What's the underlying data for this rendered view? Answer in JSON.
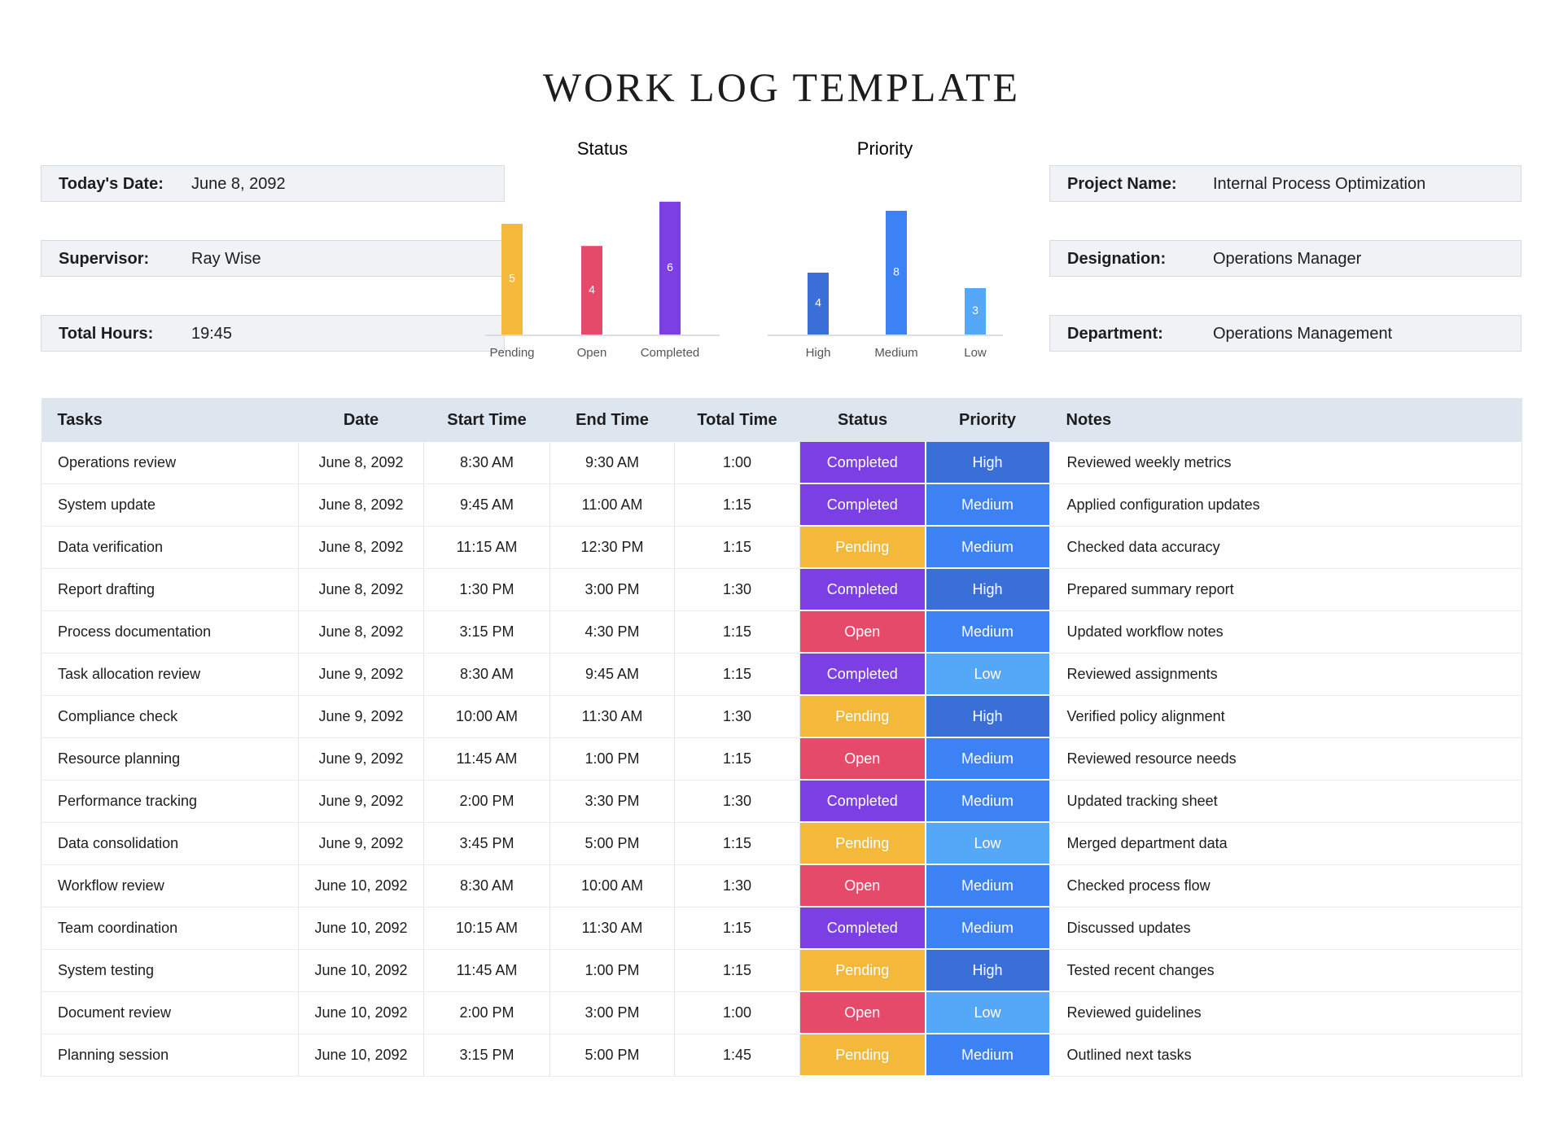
{
  "header": {
    "title": "WORK LOG TEMPLATE"
  },
  "fields_left": [
    {
      "label": "Today's Date:",
      "value": "June 8, 2092"
    },
    {
      "label": "Supervisor:",
      "value": "Ray Wise"
    },
    {
      "label": "Total Hours:",
      "value": "19:45"
    }
  ],
  "fields_right": [
    {
      "label": "Project Name:",
      "value": "Internal Process Optimization"
    },
    {
      "label": "Designation:",
      "value": "Operations Manager"
    },
    {
      "label": "Department:",
      "value": "Operations Management"
    }
  ],
  "charts": [
    {
      "type": "bar",
      "title": "Status",
      "categories": [
        "Pending",
        "Open",
        "Completed"
      ],
      "values": [
        5,
        4,
        6
      ],
      "colors": [
        "#f4b93a",
        "#e64a6b",
        "#7b3fe4"
      ]
    },
    {
      "type": "bar",
      "title": "Priority",
      "categories": [
        "High",
        "Medium",
        "Low"
      ],
      "values": [
        4,
        8,
        3
      ],
      "colors": [
        "#3a6fd8",
        "#3d82f5",
        "#55a7f7"
      ]
    }
  ],
  "status_colors": {
    "Completed": "#7b3fe4",
    "Pending": "#f4b93a",
    "Open": "#e64a6b"
  },
  "priority_colors": {
    "High": "#3a6fd8",
    "Medium": "#3d82f5",
    "Low": "#55a7f7"
  },
  "table": {
    "columns": [
      "Tasks",
      "Date",
      "Start Time",
      "End Time",
      "Total Time",
      "Status",
      "Priority",
      "Notes"
    ],
    "rows": [
      [
        "Operations review",
        "June 8, 2092",
        "8:30 AM",
        "9:30 AM",
        "1:00",
        "Completed",
        "High",
        "Reviewed weekly metrics"
      ],
      [
        "System update",
        "June 8, 2092",
        "9:45 AM",
        "11:00 AM",
        "1:15",
        "Completed",
        "Medium",
        "Applied configuration updates"
      ],
      [
        "Data verification",
        "June 8, 2092",
        "11:15 AM",
        "12:30 PM",
        "1:15",
        "Pending",
        "Medium",
        "Checked data accuracy"
      ],
      [
        "Report drafting",
        "June 8, 2092",
        "1:30 PM",
        "3:00 PM",
        "1:30",
        "Completed",
        "High",
        "Prepared summary report"
      ],
      [
        "Process documentation",
        "June 8, 2092",
        "3:15 PM",
        "4:30 PM",
        "1:15",
        "Open",
        "Medium",
        "Updated workflow notes"
      ],
      [
        "Task allocation review",
        "June 9, 2092",
        "8:30 AM",
        "9:45 AM",
        "1:15",
        "Completed",
        "Low",
        "Reviewed assignments"
      ],
      [
        "Compliance check",
        "June 9, 2092",
        "10:00 AM",
        "11:30 AM",
        "1:30",
        "Pending",
        "High",
        "Verified policy alignment"
      ],
      [
        "Resource planning",
        "June 9, 2092",
        "11:45 AM",
        "1:00 PM",
        "1:15",
        "Open",
        "Medium",
        "Reviewed resource needs"
      ],
      [
        "Performance tracking",
        "June 9, 2092",
        "2:00 PM",
        "3:30 PM",
        "1:30",
        "Completed",
        "Medium",
        "Updated tracking sheet"
      ],
      [
        "Data consolidation",
        "June 9, 2092",
        "3:45 PM",
        "5:00 PM",
        "1:15",
        "Pending",
        "Low",
        "Merged department data"
      ],
      [
        "Workflow review",
        "June 10, 2092",
        "8:30 AM",
        "10:00 AM",
        "1:30",
        "Open",
        "Medium",
        "Checked process flow"
      ],
      [
        "Team coordination",
        "June 10, 2092",
        "10:15 AM",
        "11:30 AM",
        "1:15",
        "Completed",
        "Medium",
        "Discussed updates"
      ],
      [
        "System testing",
        "June 10, 2092",
        "11:45 AM",
        "1:00 PM",
        "1:15",
        "Pending",
        "High",
        "Tested recent changes"
      ],
      [
        "Document review",
        "June 10, 2092",
        "2:00 PM",
        "3:00 PM",
        "1:00",
        "Open",
        "Low",
        "Reviewed guidelines"
      ],
      [
        "Planning session",
        "June 10, 2092",
        "3:15 PM",
        "5:00 PM",
        "1:45",
        "Pending",
        "Medium",
        "Outlined next tasks"
      ]
    ]
  }
}
